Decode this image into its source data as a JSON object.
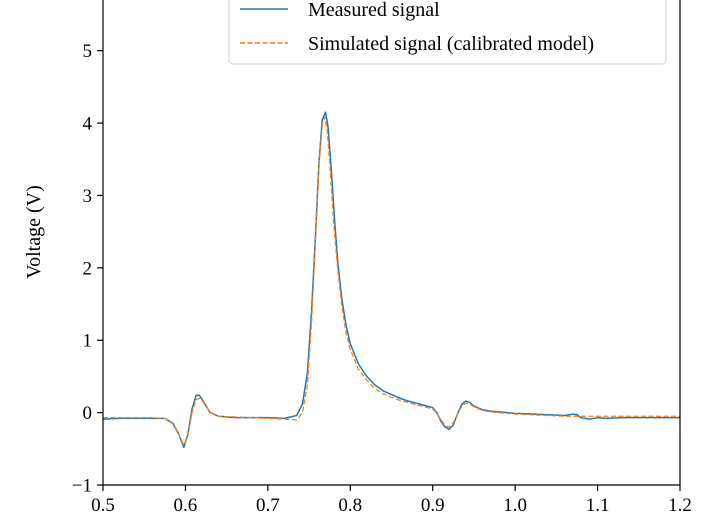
{
  "chart_data": {
    "type": "line",
    "ylabel": "Voltage (V)",
    "xlabel": "",
    "xlim": [
      0.5,
      1.2
    ],
    "ylim": [
      -1,
      5.7
    ],
    "xticks": [
      0.5,
      0.6,
      0.7,
      0.8,
      0.9,
      1.0,
      1.1,
      1.2
    ],
    "xtick_labels": [
      "0.5",
      "0.6",
      "0.7",
      "0.8",
      "0.9",
      "1.0",
      "1.1",
      "1.2"
    ],
    "yticks": [
      -1,
      0,
      1,
      2,
      3,
      4,
      5
    ],
    "ytick_labels": [
      "−1",
      "0",
      "1",
      "2",
      "3",
      "4",
      "5"
    ],
    "grid": false,
    "legend_position": "top-right",
    "series": [
      {
        "name": "Measured signal",
        "color": "#1f77b4",
        "style": "solid",
        "x": [
          0.5,
          0.52,
          0.54,
          0.56,
          0.575,
          0.585,
          0.592,
          0.598,
          0.603,
          0.608,
          0.613,
          0.617,
          0.622,
          0.63,
          0.64,
          0.66,
          0.68,
          0.7,
          0.72,
          0.735,
          0.742,
          0.748,
          0.753,
          0.758,
          0.762,
          0.766,
          0.77,
          0.773,
          0.777,
          0.781,
          0.785,
          0.79,
          0.795,
          0.8,
          0.81,
          0.82,
          0.83,
          0.84,
          0.85,
          0.86,
          0.87,
          0.88,
          0.89,
          0.9,
          0.905,
          0.91,
          0.915,
          0.92,
          0.925,
          0.93,
          0.935,
          0.94,
          0.945,
          0.95,
          0.96,
          0.97,
          0.98,
          1.0,
          1.02,
          1.04,
          1.06,
          1.07,
          1.075,
          1.08,
          1.09,
          1.1,
          1.11,
          1.13,
          1.15,
          1.17,
          1.19,
          1.2
        ],
        "y": [
          -0.09,
          -0.08,
          -0.08,
          -0.08,
          -0.08,
          -0.15,
          -0.3,
          -0.48,
          -0.3,
          0.05,
          0.24,
          0.24,
          0.15,
          0.0,
          -0.05,
          -0.07,
          -0.07,
          -0.07,
          -0.08,
          -0.04,
          0.12,
          0.55,
          1.4,
          2.5,
          3.45,
          4.05,
          4.15,
          3.95,
          3.35,
          2.65,
          2.05,
          1.55,
          1.2,
          0.95,
          0.67,
          0.5,
          0.38,
          0.3,
          0.25,
          0.2,
          0.16,
          0.13,
          0.1,
          0.07,
          0.0,
          -0.12,
          -0.2,
          -0.23,
          -0.17,
          -0.02,
          0.11,
          0.16,
          0.14,
          0.09,
          0.04,
          0.02,
          0.01,
          -0.01,
          -0.02,
          -0.03,
          -0.04,
          -0.02,
          -0.03,
          -0.07,
          -0.09,
          -0.07,
          -0.08,
          -0.07,
          -0.07,
          -0.07,
          -0.07,
          -0.07
        ]
      },
      {
        "name": "Simulated signal (calibrated model)",
        "color": "#ff7f0e",
        "style": "dashed",
        "x": [
          0.5,
          0.52,
          0.54,
          0.56,
          0.575,
          0.585,
          0.592,
          0.598,
          0.603,
          0.608,
          0.613,
          0.618,
          0.623,
          0.63,
          0.64,
          0.66,
          0.68,
          0.7,
          0.72,
          0.735,
          0.742,
          0.748,
          0.753,
          0.758,
          0.762,
          0.766,
          0.769,
          0.772,
          0.776,
          0.78,
          0.785,
          0.79,
          0.795,
          0.8,
          0.81,
          0.82,
          0.83,
          0.84,
          0.85,
          0.86,
          0.87,
          0.88,
          0.89,
          0.9,
          0.905,
          0.91,
          0.915,
          0.92,
          0.925,
          0.93,
          0.935,
          0.94,
          0.945,
          0.95,
          0.96,
          0.97,
          0.98,
          1.0,
          1.02,
          1.04,
          1.06,
          1.08,
          1.1,
          1.12,
          1.14,
          1.16,
          1.18,
          1.2
        ],
        "y": [
          -0.07,
          -0.07,
          -0.07,
          -0.07,
          -0.08,
          -0.16,
          -0.3,
          -0.45,
          -0.32,
          0.0,
          0.18,
          0.2,
          0.12,
          0.0,
          -0.05,
          -0.06,
          -0.07,
          -0.08,
          -0.09,
          -0.1,
          0.0,
          0.38,
          1.25,
          2.4,
          3.4,
          3.98,
          4.08,
          3.9,
          3.3,
          2.6,
          1.95,
          1.45,
          1.1,
          0.87,
          0.6,
          0.45,
          0.33,
          0.26,
          0.21,
          0.17,
          0.14,
          0.11,
          0.08,
          0.05,
          -0.01,
          -0.1,
          -0.18,
          -0.2,
          -0.14,
          -0.02,
          0.08,
          0.13,
          0.12,
          0.08,
          0.03,
          0.01,
          0.0,
          -0.02,
          -0.03,
          -0.04,
          -0.05,
          -0.05,
          -0.05,
          -0.05,
          -0.05,
          -0.05,
          -0.05,
          -0.05
        ]
      }
    ]
  }
}
